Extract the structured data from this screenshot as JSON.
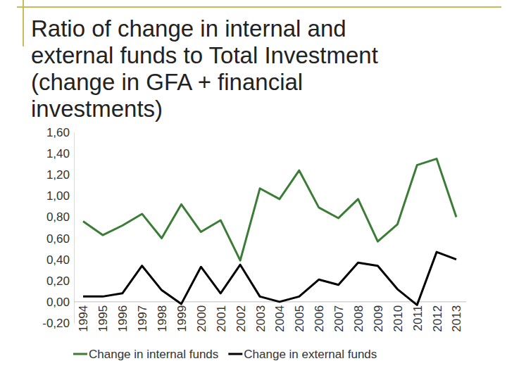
{
  "chart_data": {
    "type": "line",
    "title": "Ratio of change in internal and external funds to Total Investment (change in GFA + financial investments)",
    "categories": [
      "1994",
      "1995",
      "1996",
      "1997",
      "1998",
      "1999",
      "2000",
      "2001",
      "2002",
      "2003",
      "2004",
      "2005",
      "2006",
      "2007",
      "2008",
      "2009",
      "2010",
      "2011",
      "2012",
      "2013"
    ],
    "series": [
      {
        "name": "Change in internal funds",
        "color": "#3b7d36",
        "values": [
          0.76,
          0.63,
          0.72,
          0.83,
          0.6,
          0.92,
          0.66,
          0.77,
          0.39,
          1.07,
          0.97,
          1.24,
          0.89,
          0.79,
          0.97,
          0.57,
          0.73,
          1.29,
          1.35,
          0.8
        ]
      },
      {
        "name": "Change in external funds",
        "color": "#000000",
        "values": [
          0.05,
          0.05,
          0.08,
          0.34,
          0.11,
          -0.02,
          0.33,
          0.08,
          0.35,
          0.05,
          0.0,
          0.05,
          0.21,
          0.16,
          0.37,
          0.34,
          0.12,
          -0.03,
          0.47,
          0.4
        ]
      }
    ],
    "ylim": [
      -0.2,
      1.6
    ],
    "yticks": [
      {
        "value": -0.2,
        "label": "-0,20"
      },
      {
        "value": 0,
        "label": "0,00"
      },
      {
        "value": 0.2,
        "label": "0,20"
      },
      {
        "value": 0.4,
        "label": "0,40"
      },
      {
        "value": 0.6,
        "label": "0,60"
      },
      {
        "value": 0.8,
        "label": "0,80"
      },
      {
        "value": 1.0,
        "label": "1,00"
      },
      {
        "value": 1.2,
        "label": "1,20"
      },
      {
        "value": 1.4,
        "label": "1,40"
      },
      {
        "value": 1.6,
        "label": "1,60"
      }
    ],
    "grid": false,
    "legend": "bottom"
  }
}
